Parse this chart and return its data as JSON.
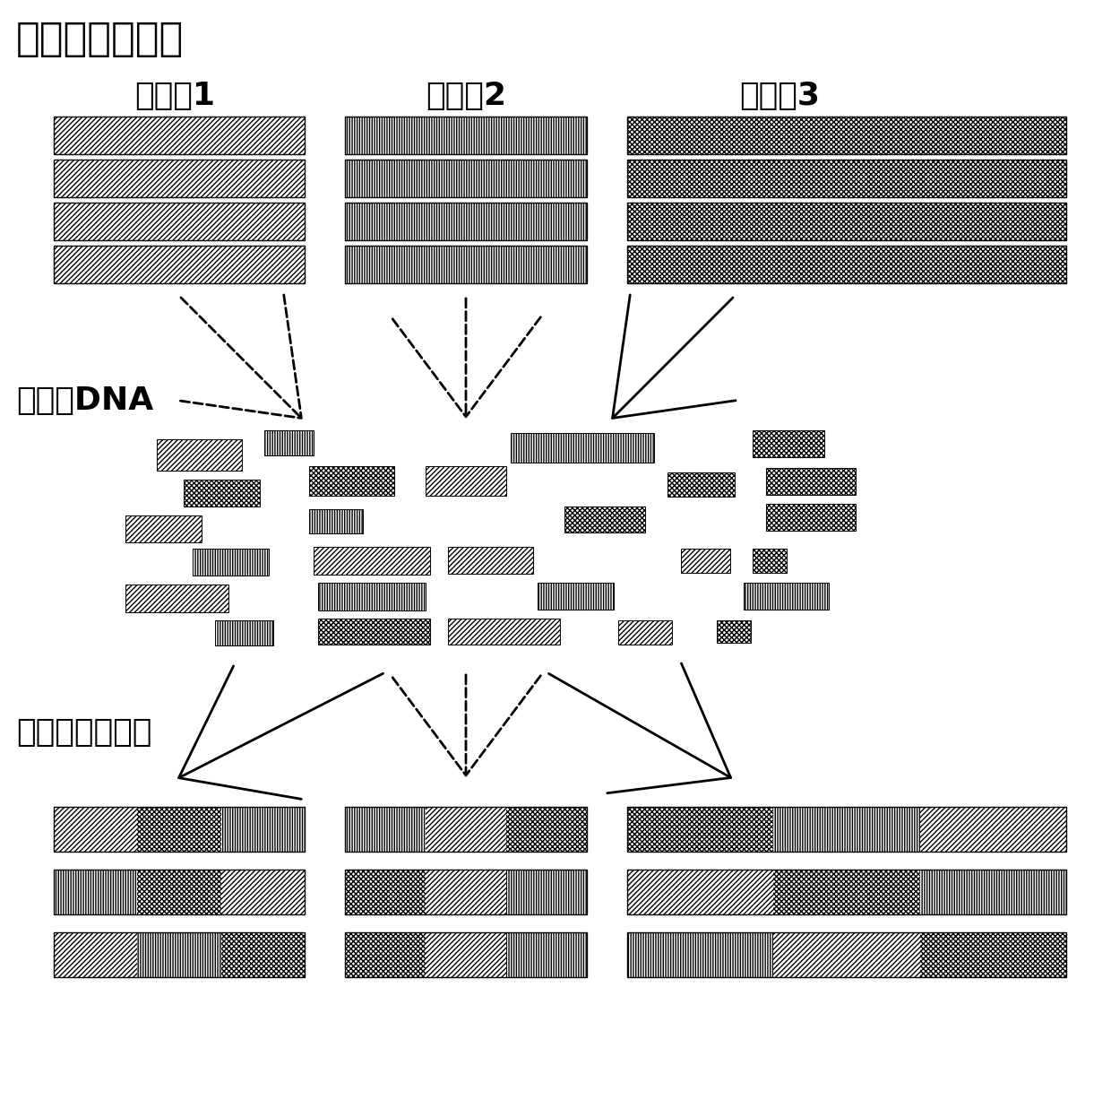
{
  "title_top": "现有基因变异体",
  "title_middle": "片断化DNA",
  "title_bottom": "嵌段基因变异体",
  "variant_labels": [
    "变异体1",
    "变异体2",
    "变异体3"
  ],
  "background_color": "#ffffff",
  "figsize": [
    12.4,
    12.46
  ],
  "dpi": 100
}
